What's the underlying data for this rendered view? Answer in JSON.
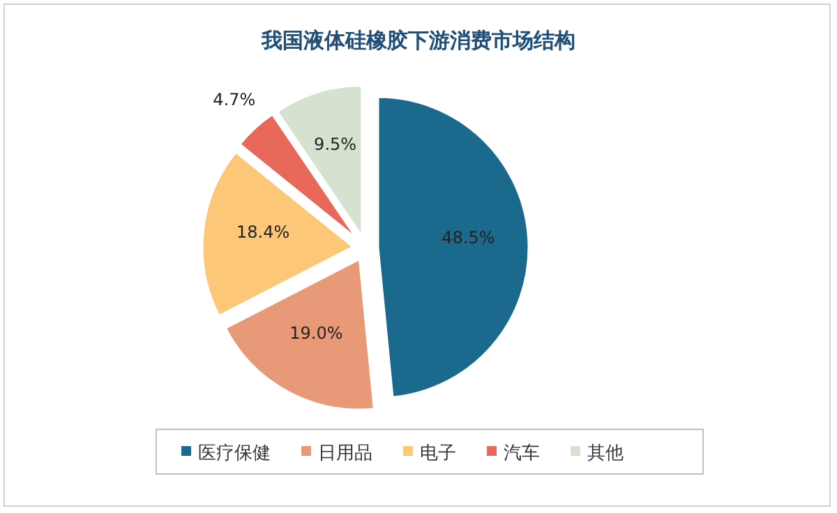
{
  "chart_data": {
    "type": "pie",
    "title": "我国液体硅橡胶下游消费市场结构",
    "categories": [
      "医疗保健",
      "日用品",
      "电子",
      "汽车",
      "其他"
    ],
    "values": [
      48.5,
      19.0,
      18.4,
      4.7,
      9.5
    ],
    "value_labels": [
      "48.5%",
      "19.0%",
      "18.4%",
      "4.7%",
      "9.5%"
    ],
    "colors": [
      "#1b6a8e",
      "#e89a78",
      "#fcc878",
      "#e8695a",
      "#d5e2d0"
    ],
    "legend": "bottom"
  }
}
